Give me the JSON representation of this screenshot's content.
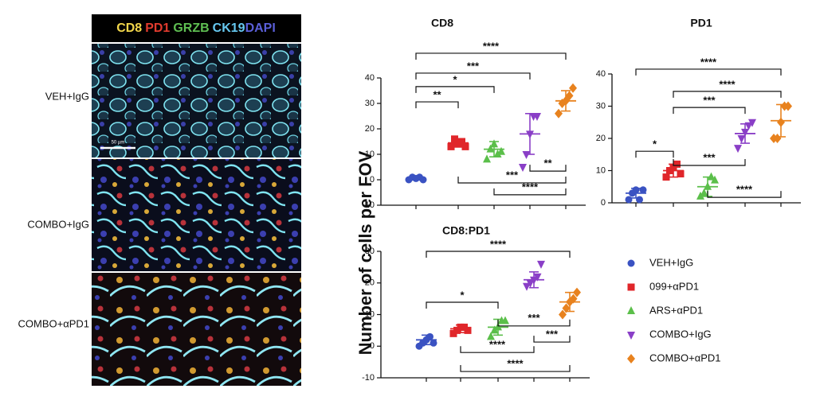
{
  "image_panel": {
    "channels": [
      {
        "name": "CD8",
        "color": "#f2d64b"
      },
      {
        "name": "PD1",
        "color": "#e23b2e"
      },
      {
        "name": "GRZB",
        "color": "#5fbf52"
      },
      {
        "name": "CK19",
        "color": "#66c8f0"
      },
      {
        "name": "DAPI",
        "color": "#5a5fd8"
      }
    ],
    "rows": [
      "VEH+IgG",
      "COMBO+IgG",
      "COMBO+αPD1"
    ],
    "scale_bar": "50 µm"
  },
  "chart_data": [
    {
      "type": "scatter",
      "title": "CD8",
      "ylabel": "Number of cells per FOV",
      "ylim": [
        -10,
        40
      ],
      "yticks": [
        -10,
        0,
        10,
        20,
        30,
        40
      ],
      "series": [
        {
          "name": "VEH+IgG",
          "color": "#3a52c2",
          "marker": "circle",
          "values": [
            0,
            1,
            0.5,
            1,
            0
          ],
          "mean": 0.5,
          "sd": 0.5
        },
        {
          "name": "099+αPD1",
          "color": "#e0262a",
          "marker": "square",
          "values": [
            13,
            16,
            14,
            15,
            13
          ],
          "mean": 14.5,
          "sd": 1.5
        },
        {
          "name": "ARS+αPD1",
          "color": "#5bbf4a",
          "marker": "triangle",
          "values": [
            8,
            12,
            14,
            10,
            11
          ],
          "mean": 12,
          "sd": 3
        },
        {
          "name": "COMBO+IgG",
          "color": "#8a3fc7",
          "marker": "triangle-down",
          "values": [
            5,
            10,
            18,
            25,
            25
          ],
          "mean": 18,
          "sd": 8
        },
        {
          "name": "COMBO+αPD1",
          "color": "#e8821e",
          "marker": "diamond",
          "values": [
            26,
            30,
            31,
            33,
            36
          ],
          "mean": 31,
          "sd": 4
        }
      ],
      "annotations": [
        "****",
        "***",
        "*",
        "**",
        "**",
        "***",
        "****"
      ]
    },
    {
      "type": "scatter",
      "title": "PD1",
      "ylim": [
        0,
        40
      ],
      "yticks": [
        0,
        10,
        20,
        30,
        40
      ],
      "series": [
        {
          "name": "VEH+IgG",
          "color": "#3a52c2",
          "marker": "circle",
          "values": [
            1,
            3,
            4,
            1,
            4
          ],
          "mean": 3,
          "sd": 1.5
        },
        {
          "name": "099+αPD1",
          "color": "#e0262a",
          "marker": "square",
          "values": [
            8,
            10,
            11,
            12,
            9
          ],
          "mean": 10,
          "sd": 2
        },
        {
          "name": "ARS+αPD1",
          "color": "#5bbf4a",
          "marker": "triangle",
          "values": [
            2,
            3,
            5,
            8,
            7
          ],
          "mean": 5,
          "sd": 3
        },
        {
          "name": "COMBO+IgG",
          "color": "#8a3fc7",
          "marker": "triangle-down",
          "values": [
            17,
            20,
            22,
            24,
            25
          ],
          "mean": 21.5,
          "sd": 3
        },
        {
          "name": "COMBO+αPD1",
          "color": "#e8821e",
          "marker": "diamond",
          "values": [
            20,
            20,
            25,
            30,
            30
          ],
          "mean": 25.5,
          "sd": 5
        }
      ],
      "annotations": [
        "****",
        "****",
        "***",
        "*",
        "***",
        "****"
      ]
    },
    {
      "type": "scatter",
      "title": "CD8:PD1",
      "ylim": [
        -10,
        30
      ],
      "yticks": [
        -10,
        0,
        10,
        20,
        30
      ],
      "series": [
        {
          "name": "VEH+IgG",
          "color": "#3a52c2",
          "marker": "circle",
          "values": [
            0,
            1,
            2,
            3,
            1
          ],
          "mean": 2,
          "sd": 1.5
        },
        {
          "name": "099+αPD1",
          "color": "#e0262a",
          "marker": "square",
          "values": [
            4,
            5,
            6,
            6,
            5
          ],
          "mean": 5.5,
          "sd": 1.2
        },
        {
          "name": "ARS+αPD1",
          "color": "#5bbf4a",
          "marker": "triangle",
          "values": [
            3,
            5,
            6,
            8,
            8
          ],
          "mean": 6,
          "sd": 2.5
        },
        {
          "name": "COMBO+IgG",
          "color": "#8a3fc7",
          "marker": "triangle-down",
          "values": [
            19,
            20,
            21,
            22,
            26
          ],
          "mean": 21,
          "sd": 2.5
        },
        {
          "name": "COMBO+αPD1",
          "color": "#e8821e",
          "marker": "diamond",
          "values": [
            10,
            12,
            14,
            15,
            17
          ],
          "mean": 14,
          "sd": 3
        }
      ],
      "annotations": [
        "****",
        "*",
        "***",
        "***",
        "****",
        "****"
      ]
    }
  ]
}
